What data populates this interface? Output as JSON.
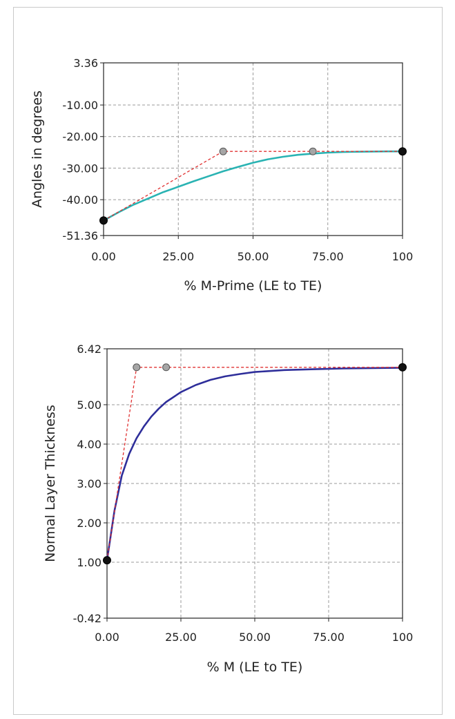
{
  "chart_data": [
    {
      "type": "line",
      "xlabel": "% M-Prime (LE to TE)",
      "ylabel": "Angles in degrees",
      "xlim": [
        0,
        100
      ],
      "ylim": [
        -51.36,
        3.36
      ],
      "xticks": [
        0,
        25,
        50,
        75,
        100
      ],
      "xtick_labels": [
        "0.00",
        "25.00",
        "50.00",
        "75.00",
        "100"
      ],
      "yticks": [
        3.36,
        -10,
        -20,
        -30,
        -40,
        -51.36
      ],
      "ytick_labels": [
        "3.36",
        "-10.00",
        "-20.00",
        "-30.00",
        "-40.00",
        "-51.36"
      ],
      "grid": true,
      "series": [
        {
          "role": "curve",
          "color": "#2ab3b3",
          "x": [
            0,
            5,
            10,
            15,
            20,
            25,
            30,
            35,
            40,
            45,
            50,
            55,
            60,
            65,
            70,
            75,
            80,
            85,
            90,
            95,
            100
          ],
          "y": [
            -46.6,
            -44.0,
            -41.6,
            -39.6,
            -37.6,
            -35.9,
            -34.2,
            -32.6,
            -31.0,
            -29.6,
            -28.3,
            -27.2,
            -26.4,
            -25.8,
            -25.4,
            -25.1,
            -24.9,
            -24.8,
            -24.75,
            -24.7,
            -24.7
          ]
        },
        {
          "role": "control-polygon",
          "color": "#e03030",
          "x": [
            0,
            40,
            70,
            100
          ],
          "y": [
            -46.6,
            -24.7,
            -24.7,
            -24.7
          ]
        }
      ],
      "control_points": {
        "x": [
          0,
          40,
          70,
          100
        ],
        "y": [
          -46.6,
          -24.7,
          -24.7,
          -24.7
        ],
        "styles": [
          "end",
          "mid",
          "mid",
          "end"
        ]
      }
    },
    {
      "type": "line",
      "xlabel": "% M (LE to TE)",
      "ylabel": "Normal Layer Thickness",
      "xlim": [
        0,
        100
      ],
      "ylim": [
        -0.42,
        6.42
      ],
      "xticks": [
        0,
        25,
        50,
        75,
        100
      ],
      "xtick_labels": [
        "0.00",
        "25.00",
        "50.00",
        "75.00",
        "100"
      ],
      "yticks": [
        6.42,
        5,
        4,
        3,
        2,
        1,
        -0.42
      ],
      "ytick_labels": [
        "6.42",
        "5.00",
        "4.00",
        "3.00",
        "2.00",
        "1.00",
        "-0.42"
      ],
      "grid": true,
      "series": [
        {
          "role": "curve",
          "color": "#2e2e9a",
          "x": [
            0,
            2.5,
            5,
            7.5,
            10,
            12.5,
            15,
            17.5,
            20,
            25,
            30,
            35,
            40,
            45,
            50,
            60,
            70,
            80,
            90,
            100
          ],
          "y": [
            1.05,
            2.3,
            3.2,
            3.75,
            4.15,
            4.45,
            4.7,
            4.9,
            5.07,
            5.32,
            5.5,
            5.63,
            5.72,
            5.78,
            5.83,
            5.88,
            5.9,
            5.92,
            5.93,
            5.94
          ]
        },
        {
          "role": "control-polygon",
          "color": "#e03030",
          "x": [
            0,
            10,
            20,
            100
          ],
          "y": [
            1.05,
            5.95,
            5.95,
            5.95
          ]
        }
      ],
      "control_points": {
        "x": [
          0,
          10,
          20,
          100
        ],
        "y": [
          1.05,
          5.95,
          5.95,
          5.95
        ],
        "styles": [
          "end",
          "mid",
          "mid",
          "end"
        ]
      }
    }
  ]
}
